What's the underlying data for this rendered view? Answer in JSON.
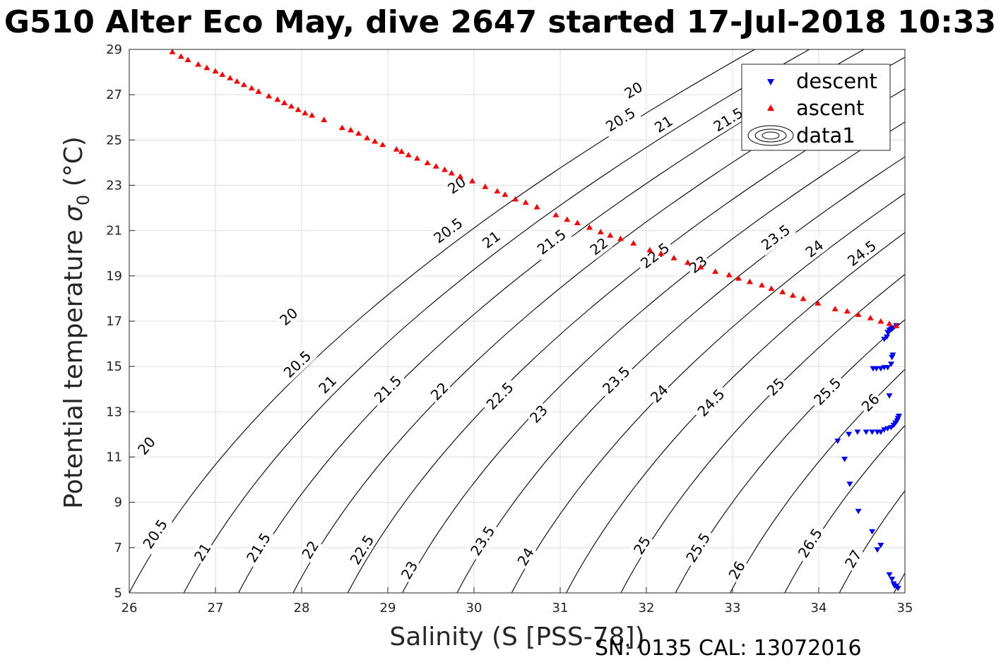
{
  "chart_data": {
    "type": "scatter",
    "title": "G510 Alter Eco May, dive 2647 started 17-Jul-2018 10:33",
    "xlabel": "Salinity (S [PSS-78])",
    "ylabel_main": "Potential temperature ",
    "ylabel_symbol": "σ",
    "ylabel_sub": "0",
    "ylabel_unit": " (°C)",
    "footer": "SN: 0135  CAL: 13072016",
    "xlim": [
      26,
      35
    ],
    "ylim": [
      5,
      29
    ],
    "x_ticks": [
      26,
      27,
      28,
      29,
      30,
      31,
      32,
      33,
      34,
      35
    ],
    "y_ticks": [
      5,
      7,
      9,
      11,
      13,
      15,
      17,
      19,
      21,
      23,
      25,
      27,
      29
    ],
    "grid": true,
    "legend_position": "top-right",
    "legend": [
      {
        "name": "descent",
        "marker": "triangle-down",
        "color": "#0000ff"
      },
      {
        "name": "ascent",
        "marker": "triangle-up",
        "color": "#ff0000"
      },
      {
        "name": "data1",
        "marker": "contour-icon",
        "color": "#000000"
      }
    ],
    "contour_levels": [
      20,
      20.5,
      21,
      21.5,
      22,
      22.5,
      23,
      23.5,
      24,
      24.5,
      25,
      25.5,
      26,
      26.5,
      27
    ],
    "contour_labels": [
      {
        "text": "20",
        "s": 26.2,
        "t": 11.5
      },
      {
        "text": "20.5",
        "s": 26.3,
        "t": 7.6
      },
      {
        "text": "21",
        "s": 26.85,
        "t": 6.8
      },
      {
        "text": "21.5",
        "s": 27.5,
        "t": 7.0
      },
      {
        "text": "22",
        "s": 28.1,
        "t": 6.9
      },
      {
        "text": "22.5",
        "s": 28.7,
        "t": 6.9
      },
      {
        "text": "23",
        "s": 29.25,
        "t": 6.0
      },
      {
        "text": "23.5",
        "s": 30.1,
        "t": 7.3
      },
      {
        "text": "24",
        "s": 30.6,
        "t": 6.6
      },
      {
        "text": "25",
        "s": 31.95,
        "t": 7.1
      },
      {
        "text": "25.5",
        "s": 32.6,
        "t": 7.0
      },
      {
        "text": "26",
        "s": 33.05,
        "t": 6.0
      },
      {
        "text": "26.5",
        "s": 33.9,
        "t": 7.2
      },
      {
        "text": "27",
        "s": 34.4,
        "t": 6.5
      },
      {
        "text": "20",
        "s": 27.85,
        "t": 17.2
      },
      {
        "text": "20.5",
        "s": 27.95,
        "t": 15.1
      },
      {
        "text": "21",
        "s": 28.3,
        "t": 14.2
      },
      {
        "text": "21.5",
        "s": 29.0,
        "t": 14.0
      },
      {
        "text": "22",
        "s": 29.6,
        "t": 13.9
      },
      {
        "text": "22.5",
        "s": 30.3,
        "t": 13.7
      },
      {
        "text": "23",
        "s": 30.75,
        "t": 12.9
      },
      {
        "text": "23.5",
        "s": 31.65,
        "t": 14.4
      },
      {
        "text": "24",
        "s": 32.15,
        "t": 13.8
      },
      {
        "text": "24.5",
        "s": 32.75,
        "t": 13.4
      },
      {
        "text": "25",
        "s": 33.5,
        "t": 14.1
      },
      {
        "text": "25.5",
        "s": 34.1,
        "t": 13.9
      },
      {
        "text": "26",
        "s": 34.6,
        "t": 13.4
      },
      {
        "text": "20",
        "s": 29.8,
        "t": 23.0
      },
      {
        "text": "20.5",
        "s": 29.7,
        "t": 21.0
      },
      {
        "text": "21",
        "s": 30.2,
        "t": 20.6
      },
      {
        "text": "21.5",
        "s": 30.9,
        "t": 20.5
      },
      {
        "text": "22",
        "s": 31.45,
        "t": 20.3
      },
      {
        "text": "22.5",
        "s": 32.1,
        "t": 19.9
      },
      {
        "text": "23",
        "s": 32.6,
        "t": 19.5
      },
      {
        "text": "23.5",
        "s": 33.5,
        "t": 20.7
      },
      {
        "text": "24",
        "s": 33.95,
        "t": 20.2
      },
      {
        "text": "24.5",
        "s": 34.5,
        "t": 20.0
      },
      {
        "text": "20",
        "s": 31.85,
        "t": 27.2
      },
      {
        "text": "20.5",
        "s": 31.7,
        "t": 25.9
      },
      {
        "text": "21",
        "s": 32.2,
        "t": 25.7
      },
      {
        "text": "21.5",
        "s": 32.95,
        "t": 25.9
      }
    ],
    "series": [
      {
        "name": "descent",
        "color": "#0000ff",
        "marker": "triangle-down",
        "points": [
          [
            34.92,
            5.2
          ],
          [
            34.9,
            5.3
          ],
          [
            34.88,
            5.3
          ],
          [
            34.87,
            5.4
          ],
          [
            34.85,
            5.6
          ],
          [
            34.82,
            5.8
          ],
          [
            34.72,
            7.1
          ],
          [
            34.68,
            6.9
          ],
          [
            34.62,
            7.7
          ],
          [
            34.46,
            8.6
          ],
          [
            34.36,
            9.8
          ],
          [
            34.3,
            10.9
          ],
          [
            34.22,
            11.7
          ],
          [
            34.35,
            12.0
          ],
          [
            34.45,
            12.1
          ],
          [
            34.55,
            12.1
          ],
          [
            34.62,
            12.1
          ],
          [
            34.68,
            12.1
          ],
          [
            34.72,
            12.1
          ],
          [
            34.76,
            12.2
          ],
          [
            34.8,
            12.25
          ],
          [
            34.84,
            12.3
          ],
          [
            34.87,
            12.4
          ],
          [
            34.89,
            12.5
          ],
          [
            34.91,
            12.6
          ],
          [
            34.92,
            12.7
          ],
          [
            34.93,
            12.8
          ],
          [
            34.82,
            13.7
          ],
          [
            34.63,
            14.9
          ],
          [
            34.67,
            14.9
          ],
          [
            34.72,
            14.9
          ],
          [
            34.76,
            14.95
          ],
          [
            34.8,
            14.95
          ],
          [
            34.84,
            15.1
          ],
          [
            34.85,
            15.4
          ],
          [
            34.86,
            15.5
          ],
          [
            34.76,
            16.2
          ],
          [
            34.79,
            16.3
          ],
          [
            34.8,
            16.5
          ],
          [
            34.82,
            16.6
          ],
          [
            34.84,
            16.65
          ],
          [
            34.86,
            16.7
          ],
          [
            34.9,
            16.8
          ]
        ]
      },
      {
        "name": "ascent",
        "color": "#ff0000",
        "marker": "triangle-up",
        "points": [
          [
            26.5,
            28.9
          ],
          [
            26.6,
            28.7
          ],
          [
            26.68,
            28.55
          ],
          [
            26.8,
            28.35
          ],
          [
            26.9,
            28.2
          ],
          [
            27.0,
            28.05
          ],
          [
            27.08,
            27.9
          ],
          [
            27.17,
            27.75
          ],
          [
            27.25,
            27.6
          ],
          [
            27.33,
            27.45
          ],
          [
            27.42,
            27.3
          ],
          [
            27.5,
            27.15
          ],
          [
            27.62,
            26.95
          ],
          [
            27.72,
            26.8
          ],
          [
            27.8,
            26.65
          ],
          [
            27.88,
            26.5
          ],
          [
            27.96,
            26.35
          ],
          [
            28.04,
            26.2
          ],
          [
            28.12,
            26.1
          ],
          [
            28.26,
            25.9
          ],
          [
            28.47,
            25.55
          ],
          [
            28.57,
            25.45
          ],
          [
            28.66,
            25.3
          ],
          [
            28.76,
            25.1
          ],
          [
            28.85,
            24.95
          ],
          [
            28.94,
            24.8
          ],
          [
            29.1,
            24.6
          ],
          [
            29.16,
            24.5
          ],
          [
            29.24,
            24.35
          ],
          [
            29.34,
            24.2
          ],
          [
            29.46,
            24.0
          ],
          [
            29.56,
            23.85
          ],
          [
            29.66,
            23.7
          ],
          [
            29.74,
            23.55
          ],
          [
            29.84,
            23.4
          ],
          [
            29.98,
            23.2
          ],
          [
            30.13,
            22.95
          ],
          [
            30.27,
            22.75
          ],
          [
            30.36,
            22.6
          ],
          [
            30.48,
            22.4
          ],
          [
            30.6,
            22.25
          ],
          [
            30.73,
            22.05
          ],
          [
            30.95,
            21.7
          ],
          [
            31.08,
            21.5
          ],
          [
            31.2,
            21.35
          ],
          [
            31.34,
            21.15
          ],
          [
            31.47,
            20.95
          ],
          [
            31.58,
            20.8
          ],
          [
            31.7,
            20.65
          ],
          [
            31.85,
            20.45
          ],
          [
            32.04,
            20.15
          ],
          [
            32.17,
            20.0
          ],
          [
            32.32,
            19.8
          ],
          [
            32.48,
            19.6
          ],
          [
            32.63,
            19.4
          ],
          [
            32.8,
            19.2
          ],
          [
            32.96,
            19.05
          ],
          [
            33.07,
            18.9
          ],
          [
            33.2,
            18.75
          ],
          [
            33.34,
            18.6
          ],
          [
            33.45,
            18.45
          ],
          [
            33.58,
            18.3
          ],
          [
            33.7,
            18.15
          ],
          [
            33.82,
            18.0
          ],
          [
            33.99,
            17.8
          ],
          [
            34.19,
            17.55
          ],
          [
            34.33,
            17.45
          ],
          [
            34.46,
            17.3
          ],
          [
            34.6,
            17.15
          ],
          [
            34.72,
            17.0
          ],
          [
            34.82,
            16.9
          ],
          [
            34.9,
            16.8
          ]
        ]
      }
    ]
  }
}
